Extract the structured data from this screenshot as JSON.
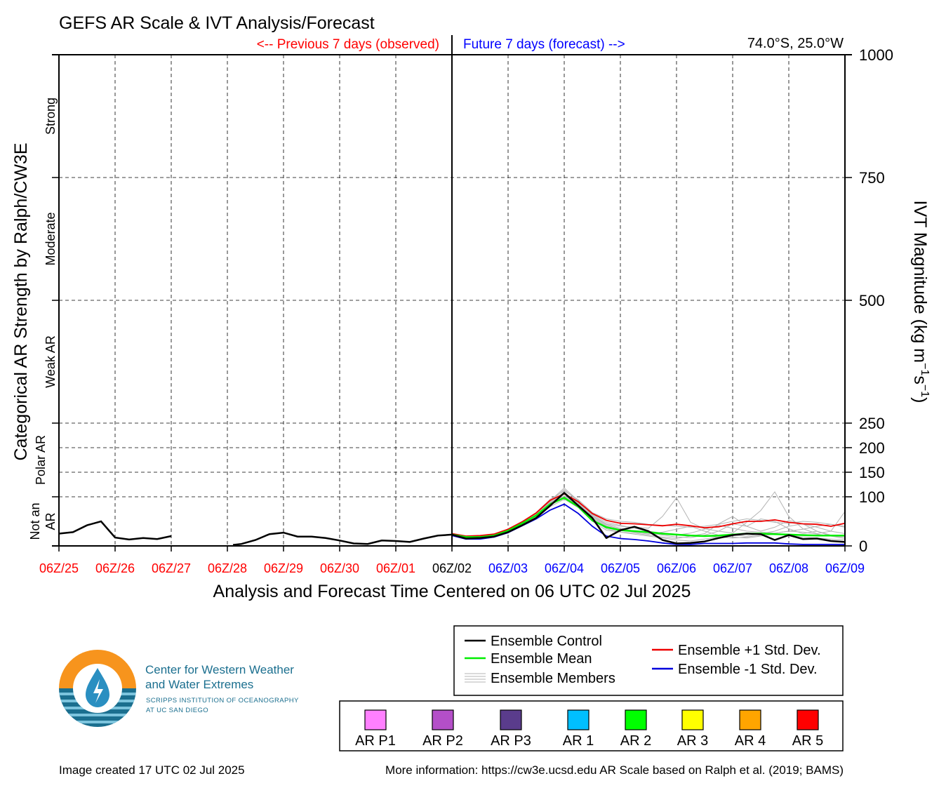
{
  "chart_data": {
    "type": "line",
    "title": "GEFS AR Scale & IVT Analysis/Forecast",
    "observed_label": "<-- Previous 7 days (observed)",
    "forecast_label": "Future 7 days (forecast) -->",
    "location": "74.0°S, 25.0°W",
    "xlabel": "Analysis and Forecast Time Centered on 06 UTC 02 Jul 2025",
    "ylabel_left": "Categorical AR Strength by Ralph/CW3E",
    "ylabel_right": "IVT Magnitude (kg m",
    "ylabel_right_sup1": "−1",
    "ylabel_right_mid": "s",
    "ylabel_right_sup2": "−1",
    "ylabel_right_end": ")",
    "x_ticks": [
      {
        "label": "06Z/25",
        "day": 0,
        "kind": "past"
      },
      {
        "label": "06Z/26",
        "day": 1,
        "kind": "past"
      },
      {
        "label": "06Z/27",
        "day": 2,
        "kind": "past"
      },
      {
        "label": "06Z/28",
        "day": 3,
        "kind": "past"
      },
      {
        "label": "06Z/29",
        "day": 4,
        "kind": "past"
      },
      {
        "label": "06Z/30",
        "day": 5,
        "kind": "past"
      },
      {
        "label": "06Z/01",
        "day": 6,
        "kind": "past"
      },
      {
        "label": "06Z/02",
        "day": 7,
        "kind": "now"
      },
      {
        "label": "06Z/03",
        "day": 8,
        "kind": "future"
      },
      {
        "label": "06Z/04",
        "day": 9,
        "kind": "future"
      },
      {
        "label": "06Z/05",
        "day": 10,
        "kind": "future"
      },
      {
        "label": "06Z/06",
        "day": 11,
        "kind": "future"
      },
      {
        "label": "06Z/07",
        "day": 12,
        "kind": "future"
      },
      {
        "label": "06Z/08",
        "day": 13,
        "kind": "future"
      },
      {
        "label": "06Z/09",
        "day": 14,
        "kind": "future"
      }
    ],
    "xlim": [
      0,
      14
    ],
    "y_ticks": [
      {
        "label": "0",
        "value": 0
      },
      {
        "label": "100",
        "value": 100
      },
      {
        "label": "150",
        "value": 150
      },
      {
        "label": "200",
        "value": 200
      },
      {
        "label": "250",
        "value": 250
      },
      {
        "label": "500",
        "value": 500
      },
      {
        "label": "750",
        "value": 750
      },
      {
        "label": "1000",
        "value": 1000
      }
    ],
    "ylim": [
      0,
      1000
    ],
    "categories": [
      {
        "label": "Strong",
        "lo": 750,
        "hi": 1000
      },
      {
        "label": "Moderate",
        "lo": 500,
        "hi": 750
      },
      {
        "label": "Weak AR",
        "lo": 250,
        "hi": 500
      },
      {
        "label": "Polar AR",
        "lo": 100,
        "hi": 250
      },
      {
        "label": "Not an AR",
        "lo": 0,
        "hi": 100
      }
    ],
    "observed_segments": [
      [
        [
          0,
          25
        ],
        [
          0.25,
          28
        ],
        [
          0.5,
          42
        ],
        [
          0.75,
          50
        ],
        [
          1.0,
          17
        ],
        [
          1.25,
          13
        ],
        [
          1.5,
          16
        ],
        [
          1.75,
          14
        ],
        [
          2.0,
          20
        ]
      ],
      [
        [
          3.1,
          2
        ],
        [
          3.25,
          4
        ],
        [
          3.5,
          12
        ],
        [
          3.75,
          24
        ],
        [
          4.0,
          27
        ],
        [
          4.25,
          19
        ],
        [
          4.5,
          19
        ],
        [
          4.75,
          16
        ],
        [
          5.0,
          11
        ],
        [
          5.25,
          5
        ],
        [
          5.5,
          4
        ],
        [
          5.75,
          11
        ],
        [
          6.0,
          10
        ],
        [
          6.25,
          8
        ],
        [
          6.5,
          15
        ],
        [
          6.75,
          21
        ],
        [
          7.0,
          23
        ]
      ]
    ],
    "series": [
      {
        "name": "Ensemble Control",
        "color": "#000000",
        "x": [
          7.0,
          7.25,
          7.5,
          7.75,
          8.0,
          8.25,
          8.5,
          8.75,
          9.0,
          9.25,
          9.5,
          9.75,
          10.0,
          10.25,
          10.5,
          10.75,
          11.0,
          11.25,
          11.5,
          11.75,
          12.0,
          12.25,
          12.5,
          12.75,
          13.0,
          13.25,
          13.5,
          13.75,
          14.0
        ],
        "values": [
          23,
          15,
          16,
          19,
          28,
          42,
          57,
          82,
          108,
          82,
          57,
          16,
          32,
          39,
          30,
          12,
          5,
          6,
          9,
          16,
          22,
          25,
          24,
          12,
          22,
          14,
          15,
          10,
          8
        ]
      },
      {
        "name": "Ensemble Mean",
        "color": "#00ee00",
        "x": [
          7.0,
          7.25,
          7.5,
          7.75,
          8.0,
          8.25,
          8.5,
          8.75,
          9.0,
          9.25,
          9.5,
          9.75,
          10.0,
          10.25,
          10.5,
          10.75,
          11.0,
          11.25,
          11.5,
          11.75,
          12.0,
          12.25,
          12.5,
          12.75,
          13.0,
          13.25,
          13.5,
          13.75,
          14.0
        ],
        "values": [
          23,
          18,
          18,
          21,
          31,
          46,
          62,
          85,
          98,
          80,
          52,
          38,
          32,
          30,
          28,
          25,
          23,
          21,
          20,
          21,
          23,
          25,
          25,
          24,
          23,
          22,
          21,
          21,
          21
        ]
      },
      {
        "name": "Ensemble +1 Std. Dev.",
        "color": "#ee0000",
        "x": [
          7.0,
          7.25,
          7.5,
          7.75,
          8.0,
          8.25,
          8.5,
          8.75,
          9.0,
          9.25,
          9.5,
          9.75,
          10.0,
          10.25,
          10.5,
          10.75,
          11.0,
          11.25,
          11.5,
          11.75,
          12.0,
          12.25,
          12.5,
          12.75,
          13.0,
          13.25,
          13.5,
          13.75,
          14.0
        ],
        "values": [
          25,
          20,
          21,
          24,
          34,
          49,
          67,
          93,
          106,
          90,
          66,
          52,
          46,
          45,
          43,
          41,
          44,
          41,
          37,
          39,
          45,
          50,
          50,
          53,
          48,
          45,
          44,
          40,
          46
        ]
      },
      {
        "name": "Ensemble -1 Std. Dev.",
        "color": "#0000dd",
        "x": [
          7.0,
          7.25,
          7.5,
          7.75,
          8.0,
          8.25,
          8.5,
          8.75,
          9.0,
          9.25,
          9.5,
          9.75,
          10.0,
          10.25,
          10.5,
          10.75,
          11.0,
          11.25,
          11.5,
          11.75,
          12.0,
          12.25,
          12.5,
          12.75,
          13.0,
          13.25,
          13.5,
          13.75,
          14.0
        ],
        "values": [
          21,
          14,
          14,
          18,
          27,
          41,
          55,
          73,
          85,
          66,
          40,
          20,
          15,
          13,
          10,
          6,
          3,
          3,
          5,
          5,
          5,
          6,
          6,
          6,
          4,
          3,
          3,
          3,
          3
        ]
      }
    ],
    "ensemble_members": {
      "name": "Ensemble Members",
      "color": "#b4b4b4",
      "x": [
        7.0,
        7.25,
        7.5,
        7.75,
        8.0,
        8.25,
        8.5,
        8.75,
        9.0,
        9.25,
        9.5,
        9.75,
        10.0,
        10.25,
        10.5,
        10.75,
        11.0,
        11.25,
        11.5,
        11.75,
        12.0,
        12.25,
        12.5,
        12.75,
        13.0,
        13.25,
        13.5,
        13.75,
        14.0
      ],
      "members": [
        [
          24,
          17,
          18,
          22,
          33,
          48,
          65,
          92,
          118,
          92,
          62,
          45,
          40,
          38,
          36,
          60,
          98,
          48,
          35,
          30,
          45,
          40,
          55,
          50,
          35,
          25,
          30,
          22,
          20
        ],
        [
          22,
          16,
          17,
          20,
          30,
          45,
          60,
          86,
          102,
          84,
          55,
          35,
          28,
          26,
          22,
          18,
          15,
          20,
          25,
          45,
          60,
          40,
          30,
          38,
          52,
          45,
          30,
          20,
          15
        ],
        [
          23,
          18,
          19,
          21,
          32,
          47,
          63,
          88,
          110,
          86,
          58,
          42,
          34,
          30,
          26,
          22,
          18,
          17,
          22,
          30,
          26,
          48,
          72,
          110,
          60,
          35,
          25,
          30,
          70
        ],
        [
          21,
          15,
          16,
          19,
          28,
          43,
          58,
          80,
          95,
          78,
          50,
          32,
          28,
          24,
          20,
          16,
          12,
          10,
          14,
          18,
          22,
          20,
          25,
          30,
          40,
          45,
          38,
          30,
          25
        ],
        [
          25,
          19,
          20,
          23,
          34,
          50,
          68,
          95,
          112,
          94,
          68,
          55,
          50,
          48,
          44,
          42,
          40,
          38,
          40,
          44,
          50,
          55,
          52,
          48,
          46,
          50,
          48,
          44,
          40
        ],
        [
          22,
          17,
          17,
          20,
          29,
          44,
          60,
          84,
          100,
          82,
          56,
          40,
          32,
          28,
          24,
          28,
          34,
          40,
          30,
          22,
          18,
          16,
          20,
          24,
          22,
          18,
          16,
          14,
          12
        ],
        [
          23,
          16,
          18,
          22,
          31,
          46,
          62,
          87,
          106,
          88,
          60,
          44,
          36,
          30,
          26,
          24,
          22,
          26,
          34,
          42,
          36,
          30,
          28,
          26,
          30,
          34,
          40,
          44,
          38
        ],
        [
          24,
          18,
          19,
          21,
          32,
          48,
          64,
          90,
          115,
          90,
          64,
          48,
          42,
          36,
          30,
          26,
          24,
          22,
          20,
          18,
          16,
          18,
          22,
          26,
          30,
          28,
          24,
          20,
          18
        ]
      ]
    },
    "legend": [
      {
        "label": "Ensemble Control",
        "color": "#000000"
      },
      {
        "label": "Ensemble Mean",
        "color": "#00ee00"
      },
      {
        "label": "Ensemble Members",
        "color": "#b4b4b4"
      },
      {
        "label": "Ensemble +1 Std. Dev.",
        "color": "#ee0000"
      },
      {
        "label": "Ensemble -1 Std. Dev.",
        "color": "#0000dd"
      }
    ],
    "ar_scale": [
      {
        "label": "AR P1",
        "color": "#ff80ff"
      },
      {
        "label": "AR P2",
        "color": "#b44fc8"
      },
      {
        "label": "AR P3",
        "color": "#5a3c8c"
      },
      {
        "label": "AR 1",
        "color": "#00bfff"
      },
      {
        "label": "AR 2",
        "color": "#00ff00"
      },
      {
        "label": "AR 3",
        "color": "#ffff00"
      },
      {
        "label": "AR 4",
        "color": "#ffa500"
      },
      {
        "label": "AR 5",
        "color": "#ff0000"
      }
    ],
    "colors": {
      "past_tick": "#ff0000",
      "future_tick": "#0000ff",
      "now_tick": "#000000"
    }
  },
  "logo": {
    "name_line1": "Center for Western Weather",
    "name_line2": "and Water Extremes",
    "sub_line1": "SCRIPPS INSTITUTION OF OCEANOGRAPHY",
    "sub_line2": "AT UC SAN DIEGO"
  },
  "footer": {
    "created": "Image created 17 UTC 02 Jul 2025",
    "info": "More information: https://cw3e.ucsd.edu AR Scale based on Ralph et al. (2019; BAMS)"
  }
}
